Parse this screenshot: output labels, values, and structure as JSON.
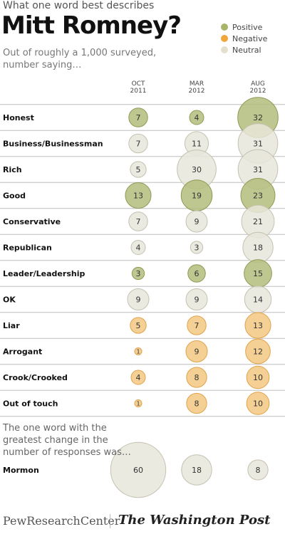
{
  "kicker": "What one word best describes",
  "title": "Mitt Romney?",
  "subtitle": "Out of roughly a 1,000 surveyed, number saying…",
  "legend": [
    {
      "label": "Positive",
      "color": "#a7b46a"
    },
    {
      "label": "Negative",
      "color": "#f0a63a"
    },
    {
      "label": "Neutral",
      "color": "#e3e0cf"
    }
  ],
  "colors": {
    "positive_fill": "#b4bd7c",
    "positive_stroke": "#8e9a55",
    "negative_fill": "#f3c883",
    "negative_stroke": "#e0a24a",
    "neutral_fill": "#e8e6da",
    "neutral_stroke": "#c4c1b0",
    "divider": "#bdbdbd"
  },
  "chart_data": {
    "type": "bubble-table",
    "columns": [
      {
        "line1": "OCT",
        "line2": "2011"
      },
      {
        "line1": "MAR",
        "line2": "2012"
      },
      {
        "line1": "AUG",
        "line2": "2012"
      }
    ],
    "rows": [
      {
        "word": "Honest",
        "values": [
          7,
          4,
          32
        ],
        "tones": [
          "positive",
          "positive",
          "positive"
        ]
      },
      {
        "word": "Business/Businessman",
        "values": [
          7,
          11,
          31
        ],
        "tones": [
          "neutral",
          "neutral",
          "neutral"
        ]
      },
      {
        "word": "Rich",
        "values": [
          5,
          30,
          31
        ],
        "tones": [
          "neutral",
          "neutral",
          "neutral"
        ]
      },
      {
        "word": "Good",
        "values": [
          13,
          19,
          23
        ],
        "tones": [
          "positive",
          "positive",
          "positive"
        ]
      },
      {
        "word": "Conservative",
        "values": [
          7,
          9,
          21
        ],
        "tones": [
          "neutral",
          "neutral",
          "neutral"
        ]
      },
      {
        "word": "Republican",
        "values": [
          4,
          3,
          18
        ],
        "tones": [
          "neutral",
          "neutral",
          "neutral"
        ]
      },
      {
        "word": "Leader/Leadership",
        "values": [
          3,
          6,
          15
        ],
        "tones": [
          "positive",
          "positive",
          "positive"
        ]
      },
      {
        "word": "OK",
        "values": [
          9,
          9,
          14
        ],
        "tones": [
          "neutral",
          "neutral",
          "neutral"
        ]
      },
      {
        "word": "Liar",
        "values": [
          5,
          7,
          13
        ],
        "tones": [
          "negative",
          "negative",
          "negative"
        ]
      },
      {
        "word": "Arrogant",
        "values": [
          1,
          9,
          12
        ],
        "tones": [
          "negative",
          "negative",
          "negative"
        ]
      },
      {
        "word": "Crook/Crooked",
        "values": [
          4,
          8,
          10
        ],
        "tones": [
          "negative",
          "negative",
          "negative"
        ]
      },
      {
        "word": "Out of touch",
        "values": [
          1,
          8,
          10
        ],
        "tones": [
          "negative",
          "negative",
          "negative"
        ]
      }
    ],
    "greatest_change": {
      "note": "The one word with the greatest change in the number of responses was…",
      "word": "Mormon",
      "values": [
        60,
        18,
        8
      ],
      "tones": [
        "neutral",
        "neutral",
        "neutral"
      ]
    }
  },
  "footer": {
    "pew": "PewResearchCenter",
    "wapo": "The Washington Post"
  }
}
